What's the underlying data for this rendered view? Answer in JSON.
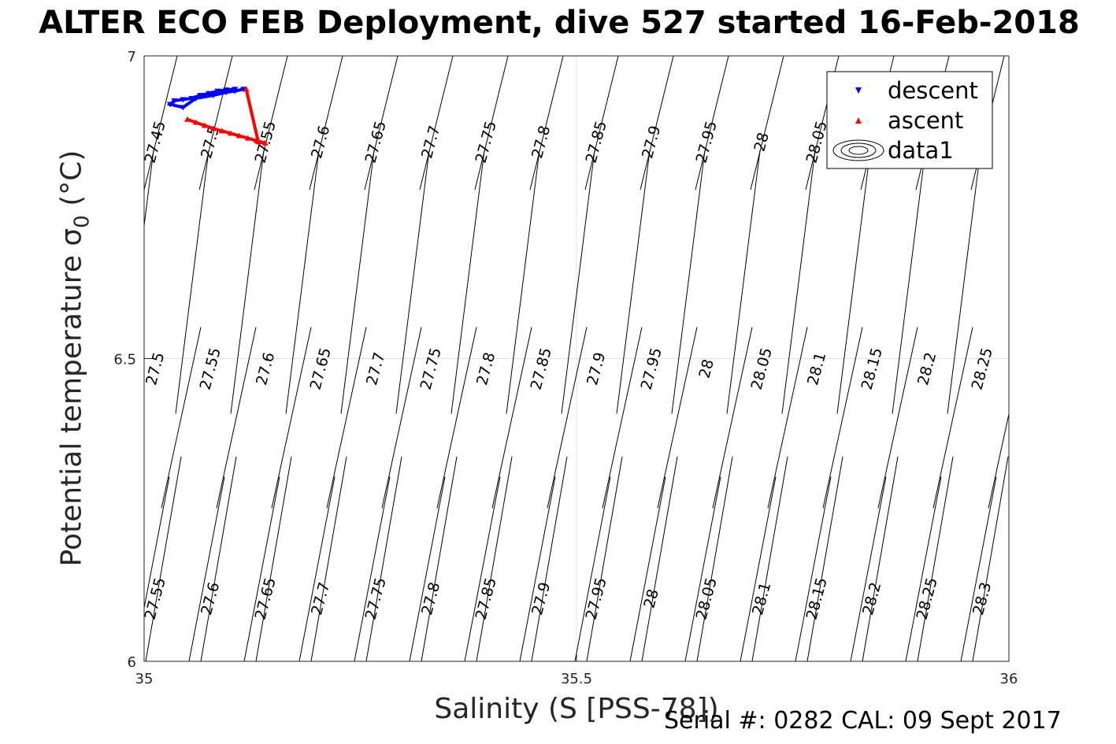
{
  "chart_data": {
    "type": "scatter",
    "title": "ALTER ECO FEB Deployment, dive 527 started 16-Feb-2018",
    "xlabel": "Salinity (S [PSS-78])",
    "ylabel_main": "Potential temperature ",
    "ylabel_sigma": "σ",
    "ylabel_sub": "0",
    "ylabel_unit": " (°C)",
    "xlim": [
      35,
      36
    ],
    "ylim": [
      6,
      7
    ],
    "x_ticks": [
      "35",
      "35.5",
      "36"
    ],
    "y_ticks": [
      "6",
      "6.5",
      "7"
    ],
    "grid": true,
    "legend_position": "top-right",
    "legend": [
      "descent",
      "ascent",
      "data1"
    ],
    "contour_labels": {
      "top": [
        "27.45",
        "27.5",
        "27.55",
        "27.6",
        "27.65",
        "27.7",
        "27.75",
        "27.8",
        "27.85",
        "27.9",
        "27.95",
        "28",
        "28.05"
      ],
      "middle": [
        "27.5",
        "27.55",
        "27.6",
        "27.65",
        "27.7",
        "27.75",
        "27.8",
        "27.85",
        "27.9",
        "27.95",
        "28",
        "28.05",
        "28.1",
        "28.15",
        "28.2",
        "28.25"
      ],
      "bottom": [
        "27.55",
        "27.6",
        "27.65",
        "27.7",
        "27.75",
        "27.8",
        "27.85",
        "27.9",
        "27.95",
        "28",
        "28.05",
        "28.1",
        "28.15",
        "28.2",
        "28.25",
        "28.3"
      ]
    },
    "series": [
      {
        "name": "descent",
        "color": "#0000ff",
        "marker": "triangle-down",
        "x": [
          35.105,
          35.095,
          35.085,
          35.075,
          35.065,
          35.055,
          35.045,
          35.035,
          35.03,
          35.045,
          35.06,
          35.08,
          35.095,
          35.105,
          35.115
        ],
        "y": [
          6.945,
          6.944,
          6.942,
          6.938,
          6.935,
          6.93,
          6.928,
          6.926,
          6.92,
          6.915,
          6.93,
          6.935,
          6.94,
          6.942,
          6.945
        ]
      },
      {
        "name": "ascent",
        "color": "#ff0000",
        "marker": "triangle-up",
        "x": [
          35.05,
          35.06,
          35.07,
          35.08,
          35.09,
          35.1,
          35.11,
          35.12,
          35.13,
          35.14,
          35.132,
          35.118
        ],
        "y": [
          6.895,
          6.89,
          6.885,
          6.88,
          6.876,
          6.872,
          6.868,
          6.864,
          6.86,
          6.856,
          6.858,
          6.945
        ]
      }
    ]
  },
  "footer": {
    "serial": "Serial #: 0282  CAL: 09 Sept 2017"
  }
}
